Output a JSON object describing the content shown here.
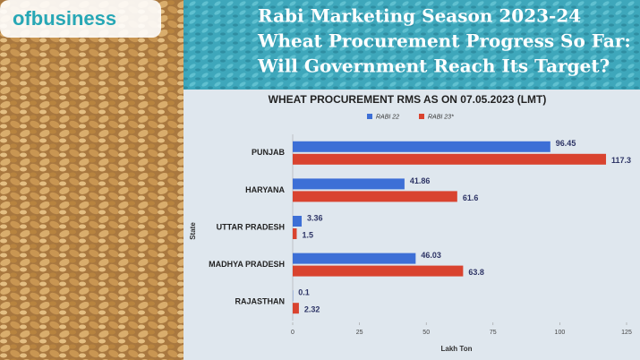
{
  "logo": "ofbusiness",
  "headline": [
    "Rabi Marketing Season 2023-24",
    "Wheat Procurement Progress So Far:",
    "Will Government Reach Its Target?"
  ],
  "chart_data": {
    "type": "bar",
    "orientation": "horizontal",
    "title": "WHEAT PROCUREMENT RMS AS ON 07.05.2023 (LMT)",
    "x_label": "Lakh Ton",
    "y_label": "State",
    "categories": [
      "PUNJAB",
      "HARYANA",
      "UTTAR PRADESH",
      "MADHYA PRADESH",
      "RAJASTHAN"
    ],
    "series": [
      {
        "name": "RABI 22",
        "color": "#3d6fd6",
        "values": [
          96.45,
          41.86,
          3.36,
          46.03,
          0.1
        ]
      },
      {
        "name": "RABI 23*",
        "color": "#d9432f",
        "values": [
          117.3,
          61.6,
          1.5,
          63.8,
          2.32
        ]
      }
    ],
    "xlim": [
      0,
      125
    ],
    "xticks": [
      0,
      25,
      50,
      75,
      100,
      125
    ],
    "grid": false,
    "legend": "top"
  }
}
